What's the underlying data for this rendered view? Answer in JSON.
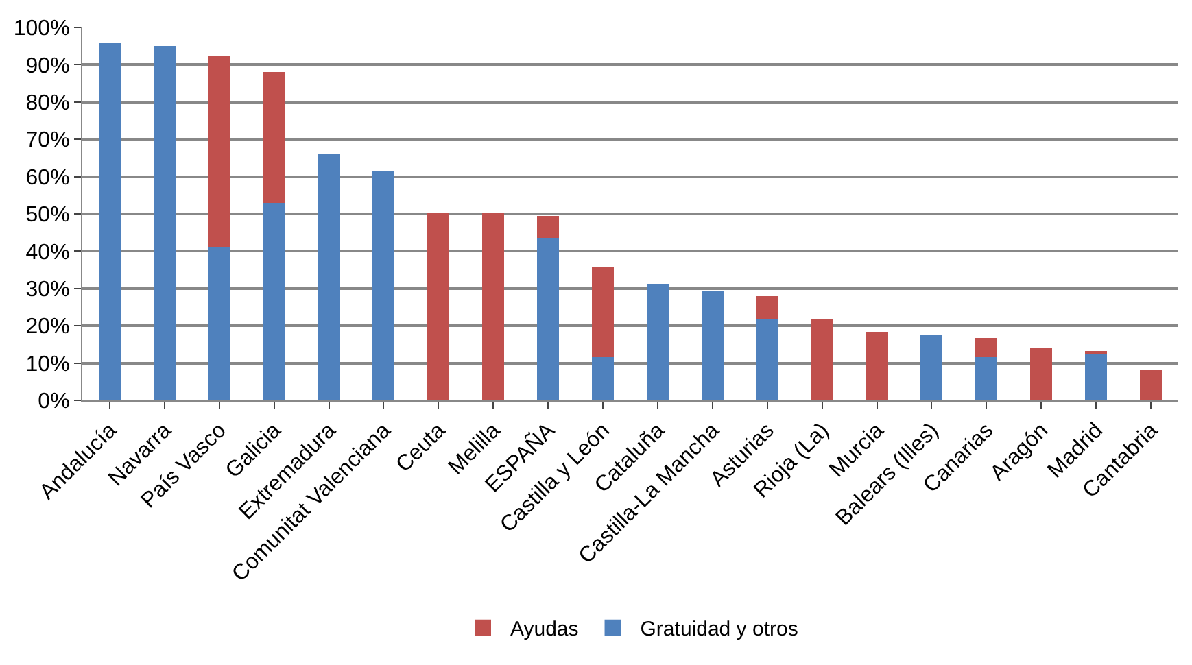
{
  "chart_data": {
    "type": "bar",
    "stacked": true,
    "categories": [
      "Andalucía",
      "Navarra",
      "País Vasco",
      "Galicia",
      "Extremadura",
      "Comunitat Valenciana",
      "Ceuta",
      "Melilla",
      "ESPAÑA",
      "Castilla y León",
      "Cataluña",
      "Castilla-La Mancha",
      "Asturias",
      "Rioja (La)",
      "Murcia",
      "Balears (Illes)",
      "Canarias",
      "Aragón",
      "Madrid",
      "Cantabria"
    ],
    "series": [
      {
        "name": "Gratuidad y otros",
        "color": "#4f81bd",
        "values": [
          96,
          95,
          41,
          53,
          66,
          61.4,
          0,
          0,
          43.5,
          11.5,
          31.2,
          29.5,
          21.9,
          0,
          0,
          17.6,
          11.5,
          0,
          12.4,
          0
        ]
      },
      {
        "name": "Ayudas",
        "color": "#c0504d",
        "values": [
          0,
          0,
          51.5,
          35,
          0,
          0,
          50.2,
          50.2,
          6,
          24.2,
          0,
          0,
          6,
          21.9,
          18.3,
          0,
          5.2,
          14,
          0.8,
          8.1
        ]
      }
    ],
    "ylim": [
      0,
      100
    ],
    "yticks": [
      {
        "value": 0,
        "label": "0%"
      },
      {
        "value": 10,
        "label": "10%"
      },
      {
        "value": 20,
        "label": "20%"
      },
      {
        "value": 30,
        "label": "30%"
      },
      {
        "value": 40,
        "label": "40%"
      },
      {
        "value": 50,
        "label": "50%"
      },
      {
        "value": 60,
        "label": "60%"
      },
      {
        "value": 70,
        "label": "70%"
      },
      {
        "value": 80,
        "label": "80%"
      },
      {
        "value": 90,
        "label": "90%"
      },
      {
        "value": 100,
        "label": "100%"
      }
    ],
    "grid": "y",
    "legend": "bottom"
  }
}
